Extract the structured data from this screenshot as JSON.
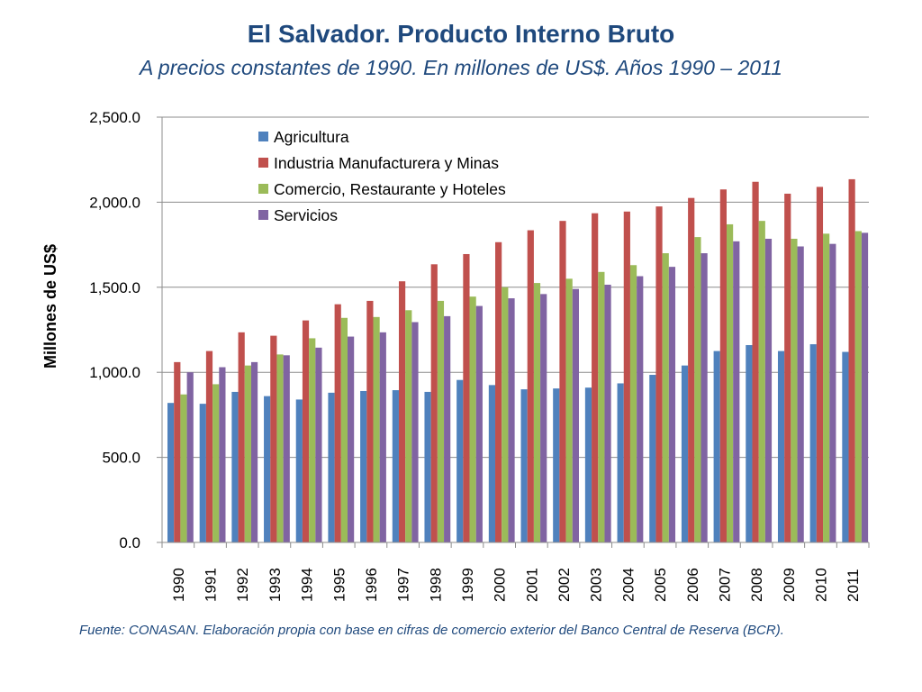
{
  "slide": {
    "title": "El Salvador. Producto Interno Bruto",
    "subtitle": "A precios constantes de 1990. En millones de US$. Años 1990 – 2011",
    "footer": "Fuente: CONASAN. Elaboración propia con base en cifras de comercio exterior del Banco Central de Reserva (BCR)."
  },
  "chart_data": {
    "type": "bar",
    "title": "El Salvador. Producto Interno Bruto",
    "subtitle": "A precios constantes de 1990. En millones de US$. Años 1990 – 2011",
    "xlabel": "",
    "ylabel": "Millones de US$",
    "ylim": [
      0,
      2500
    ],
    "yticks": [
      0,
      500,
      1000,
      1500,
      2000,
      2500
    ],
    "ytick_labels": [
      "0.0",
      "500.0",
      "1,000.0",
      "1,500.0",
      "2,000.0",
      "2,500.0"
    ],
    "grid": true,
    "legend_position": "top-left",
    "categories": [
      "1990",
      "1991",
      "1992",
      "1993",
      "1994",
      "1995",
      "1996",
      "1997",
      "1998",
      "1999",
      "2000",
      "2001",
      "2002",
      "2003",
      "2004",
      "2005",
      "2006",
      "2007",
      "2008",
      "2009",
      "2010",
      "2011"
    ],
    "series": [
      {
        "name": "Agricultura",
        "color": "#4f81bd",
        "values": [
          820,
          815,
          885,
          860,
          840,
          880,
          890,
          895,
          885,
          955,
          925,
          900,
          905,
          910,
          935,
          985,
          1040,
          1125,
          1160,
          1125,
          1165,
          1120
        ]
      },
      {
        "name": "Industria Manufacturera y Minas",
        "color": "#c0504d",
        "values": [
          1060,
          1125,
          1235,
          1215,
          1305,
          1400,
          1420,
          1535,
          1635,
          1695,
          1765,
          1835,
          1890,
          1935,
          1945,
          1975,
          2025,
          2075,
          2120,
          2050,
          2090,
          2135
        ]
      },
      {
        "name": "Comercio, Restaurante y Hoteles",
        "color": "#9bbb59",
        "values": [
          870,
          930,
          1040,
          1105,
          1200,
          1320,
          1325,
          1365,
          1420,
          1445,
          1500,
          1525,
          1550,
          1590,
          1630,
          1700,
          1795,
          1870,
          1890,
          1785,
          1815,
          1830
        ]
      },
      {
        "name": "Servicios",
        "color": "#8064a2",
        "values": [
          1000,
          1030,
          1060,
          1100,
          1145,
          1210,
          1235,
          1295,
          1330,
          1390,
          1435,
          1460,
          1490,
          1515,
          1565,
          1620,
          1700,
          1770,
          1785,
          1740,
          1755,
          1820
        ]
      }
    ]
  }
}
